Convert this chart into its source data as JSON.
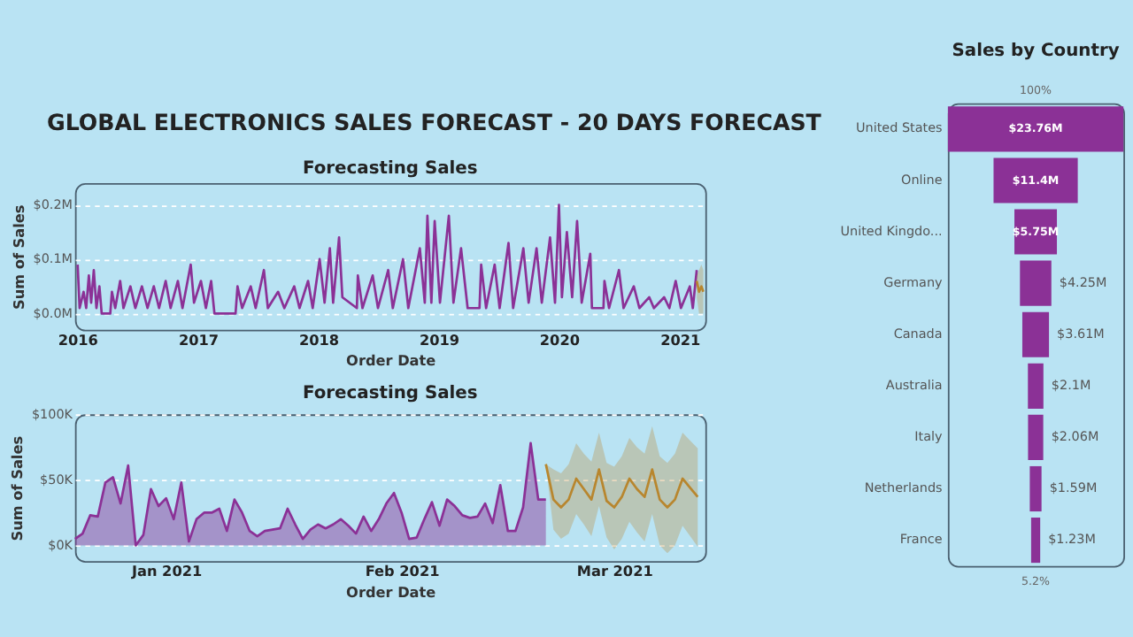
{
  "chart_data": [
    {
      "type": "other",
      "title": "GLOBAL ELECTRONICS SALES FORECAST - 20 DAYS FORECAST"
    },
    {
      "type": "line",
      "title": "Forecasting Sales",
      "xlabel": "Order Date",
      "ylabel": "Sum of Sales",
      "grid": "y",
      "xlim": [
        "2015-12-25",
        "2021-03-20"
      ],
      "xticks": [
        "2016",
        "2017",
        "2018",
        "2019",
        "2020",
        "2021"
      ],
      "ylim": [
        -0.03,
        0.24
      ],
      "yticks": [
        {
          "value": 0,
          "label": "$0.0M"
        },
        {
          "value": 0.1,
          "label": "$0.1M"
        },
        {
          "value": 0.2,
          "label": "$0.2M"
        }
      ],
      "series": [
        {
          "color": "#8b3196",
          "x": [
            "2016-01-02",
            "2016-01-08",
            "2016-01-20",
            "2016-01-28",
            "2016-02-05",
            "2016-02-12",
            "2016-02-20",
            "2016-02-28",
            "2016-03-08",
            "2016-03-15",
            "2016-04-10",
            "2016-04-15",
            "2016-04-25",
            "2016-05-10",
            "2016-05-20",
            "2016-06-10",
            "2016-06-25",
            "2016-07-15",
            "2016-08-01",
            "2016-08-20",
            "2016-09-05",
            "2016-09-25",
            "2016-10-10",
            "2016-11-01",
            "2016-11-15",
            "2016-12-10",
            "2016-12-20",
            "2017-01-10",
            "2017-01-25",
            "2017-02-10",
            "2017-02-20",
            "2017-04-25",
            "2017-05-01",
            "2017-05-15",
            "2017-06-10",
            "2017-06-25",
            "2017-07-20",
            "2017-08-01",
            "2017-09-01",
            "2017-09-20",
            "2017-10-20",
            "2017-11-05",
            "2017-12-01",
            "2017-12-15",
            "2018-01-05",
            "2018-01-20",
            "2018-02-05",
            "2018-02-15",
            "2018-03-05",
            "2018-03-15",
            "2018-04-28",
            "2018-05-01",
            "2018-05-15",
            "2018-06-15",
            "2018-07-01",
            "2018-08-01",
            "2018-08-15",
            "2018-09-15",
            "2018-10-01",
            "2018-11-05",
            "2018-11-20",
            "2018-11-28",
            "2018-12-10",
            "2018-12-20",
            "2019-01-05",
            "2019-02-01",
            "2019-02-15",
            "2019-03-10",
            "2019-03-30",
            "2019-05-05",
            "2019-05-10",
            "2019-05-25",
            "2019-06-20",
            "2019-07-05",
            "2019-08-01",
            "2019-08-15",
            "2019-09-15",
            "2019-10-01",
            "2019-10-25",
            "2019-11-10",
            "2019-12-05",
            "2019-12-20",
            "2020-01-01",
            "2020-01-10",
            "2020-01-25",
            "2020-02-10",
            "2020-02-25",
            "2020-03-10",
            "2020-04-05",
            "2020-04-10",
            "2020-05-15",
            "2020-05-18",
            "2020-06-01",
            "2020-07-01",
            "2020-07-15",
            "2020-08-15",
            "2020-09-01",
            "2020-10-01",
            "2020-10-15",
            "2020-11-15",
            "2020-12-01",
            "2020-12-20",
            "2021-01-05",
            "2021-02-01",
            "2021-02-10",
            "2021-02-22"
          ],
          "values": [
            0.09,
            0.01,
            0.04,
            0.01,
            0.07,
            0.02,
            0.08,
            0.01,
            0.05,
            0.0,
            0.0,
            0.04,
            0.01,
            0.06,
            0.01,
            0.05,
            0.01,
            0.05,
            0.01,
            0.05,
            0.01,
            0.06,
            0.01,
            0.06,
            0.01,
            0.09,
            0.02,
            0.06,
            0.01,
            0.06,
            0.0,
            0.0,
            0.05,
            0.01,
            0.05,
            0.01,
            0.08,
            0.01,
            0.04,
            0.01,
            0.05,
            0.01,
            0.06,
            0.01,
            0.1,
            0.02,
            0.12,
            0.02,
            0.14,
            0.03,
            0.01,
            0.07,
            0.01,
            0.07,
            0.01,
            0.08,
            0.01,
            0.1,
            0.01,
            0.12,
            0.02,
            0.18,
            0.02,
            0.17,
            0.02,
            0.18,
            0.02,
            0.12,
            0.01,
            0.01,
            0.09,
            0.01,
            0.09,
            0.01,
            0.13,
            0.01,
            0.12,
            0.02,
            0.12,
            0.02,
            0.14,
            0.02,
            0.2,
            0.03,
            0.15,
            0.03,
            0.17,
            0.02,
            0.11,
            0.01,
            0.01,
            0.06,
            0.01,
            0.08,
            0.01,
            0.05,
            0.01,
            0.03,
            0.01,
            0.03,
            0.01,
            0.06,
            0.01,
            0.05,
            0.01,
            0.08
          ]
        },
        {
          "type": "line",
          "color": "#b8862e",
          "x": [
            "2021-02-22",
            "2021-03-01",
            "2021-03-08",
            "2021-03-14"
          ],
          "values": [
            0.06,
            0.04,
            0.05,
            0.04
          ],
          "lower": [
            0.03,
            0.0,
            0.0,
            0.0
          ],
          "upper": [
            0.07,
            0.08,
            0.09,
            0.08
          ]
        }
      ]
    },
    {
      "type": "area",
      "title": "Forecasting Sales",
      "xlabel": "Order Date",
      "ylabel": "Sum of Sales",
      "grid": "y",
      "xlim": [
        "2020-12-20",
        "2021-03-13"
      ],
      "xticks": [
        {
          "value": "2021-01-01",
          "label": "Jan 2021"
        },
        {
          "value": "2021-02-01",
          "label": "Feb 2021"
        },
        {
          "value": "2021-03-01",
          "label": "Mar 2021"
        }
      ],
      "ylim": [
        -12,
        100
      ],
      "yticks": [
        {
          "value": 0,
          "label": "$0K"
        },
        {
          "value": 50,
          "label": "$50K"
        },
        {
          "value": 100,
          "label": "$100K"
        }
      ],
      "series": [
        {
          "color": "#8b3196",
          "x": [
            "2020-12-20",
            "2020-12-21",
            "2020-12-22",
            "2020-12-23",
            "2020-12-24",
            "2020-12-25",
            "2020-12-26",
            "2020-12-27",
            "2020-12-28",
            "2020-12-29",
            "2020-12-30",
            "2020-12-31",
            "2021-01-01",
            "2021-01-02",
            "2021-01-03",
            "2021-01-04",
            "2021-01-05",
            "2021-01-06",
            "2021-01-07",
            "2021-01-08",
            "2021-01-09",
            "2021-01-10",
            "2021-01-11",
            "2021-01-12",
            "2021-01-13",
            "2021-01-14",
            "2021-01-15",
            "2021-01-16",
            "2021-01-17",
            "2021-01-18",
            "2021-01-19",
            "2021-01-20",
            "2021-01-21",
            "2021-01-22",
            "2021-01-23",
            "2021-01-24",
            "2021-01-25",
            "2021-01-26",
            "2021-01-27",
            "2021-01-28",
            "2021-01-29",
            "2021-01-30",
            "2021-01-31",
            "2021-02-01",
            "2021-02-02",
            "2021-02-03",
            "2021-02-04",
            "2021-02-05",
            "2021-02-06",
            "2021-02-07",
            "2021-02-08",
            "2021-02-09",
            "2021-02-10",
            "2021-02-11",
            "2021-02-12",
            "2021-02-13",
            "2021-02-14",
            "2021-02-15",
            "2021-02-16",
            "2021-02-17",
            "2021-02-18",
            "2021-02-19",
            "2021-02-20"
          ],
          "values": [
            5,
            9,
            23,
            22,
            48,
            52,
            32,
            61,
            0,
            8,
            43,
            30,
            36,
            20,
            48,
            3,
            20,
            25,
            25,
            28,
            11,
            35,
            25,
            11,
            7,
            11,
            12,
            13,
            28,
            16,
            5,
            12,
            16,
            13,
            16,
            20,
            15,
            9,
            22,
            11,
            20,
            32,
            40,
            25,
            5,
            6,
            20,
            33,
            15,
            35,
            30,
            23,
            21,
            22,
            32,
            17,
            46,
            11,
            11,
            29,
            78,
            35,
            35
          ]
        },
        {
          "type": "line",
          "color": "#b8862e",
          "x": [
            "2021-02-20",
            "2021-02-21",
            "2021-02-22",
            "2021-02-23",
            "2021-02-24",
            "2021-02-25",
            "2021-02-26",
            "2021-02-27",
            "2021-02-28",
            "2021-03-01",
            "2021-03-02",
            "2021-03-03",
            "2021-03-04",
            "2021-03-05",
            "2021-03-06",
            "2021-03-07",
            "2021-03-08",
            "2021-03-09",
            "2021-03-10",
            "2021-03-11",
            "2021-03-12"
          ],
          "values": [
            62,
            35,
            29,
            35,
            51,
            43,
            35,
            58,
            34,
            29,
            37,
            51,
            43,
            37,
            58,
            35,
            29,
            35,
            51,
            44,
            37
          ],
          "upper": [
            62,
            58,
            55,
            62,
            78,
            70,
            64,
            86,
            63,
            60,
            68,
            82,
            75,
            70,
            91,
            68,
            63,
            70,
            86,
            80,
            74
          ],
          "lower": [
            62,
            12,
            5,
            9,
            24,
            16,
            7,
            30,
            6,
            -3,
            5,
            18,
            10,
            3,
            24,
            0,
            -6,
            0,
            15,
            7,
            -1
          ]
        }
      ]
    },
    {
      "type": "other",
      "title": "Sales by Country",
      "color": "#8b3196",
      "categories": [
        "United States",
        "Online",
        "United Kingdo...",
        "Germany",
        "Canada",
        "Australia",
        "Italy",
        "Netherlands",
        "France"
      ],
      "values": [
        23.76,
        11.4,
        5.75,
        4.25,
        3.61,
        2.1,
        2.06,
        1.59,
        1.23
      ],
      "value_labels": [
        "$23.76M",
        "$11.4M",
        "$5.75M",
        "$4.25M",
        "$3.61M",
        "$2.1M",
        "$2.06M",
        "$1.59M",
        "$1.23M"
      ],
      "annotations": [
        "100%",
        "5.2%"
      ]
    }
  ]
}
